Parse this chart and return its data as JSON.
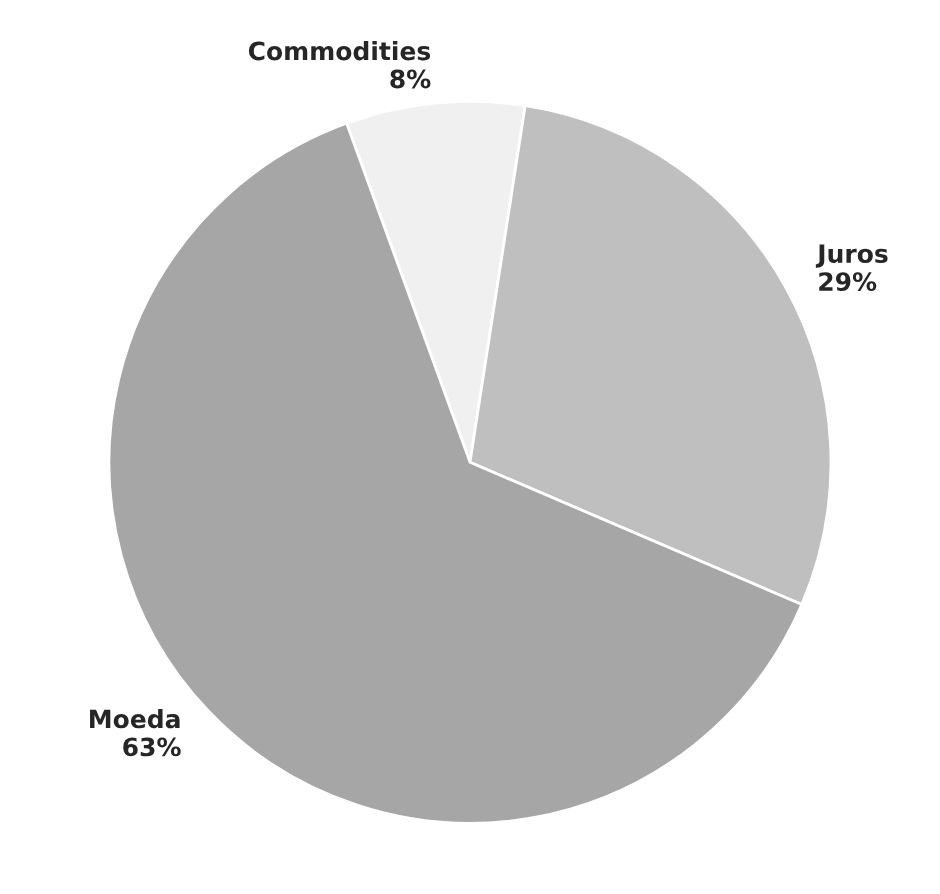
{
  "chart_data": {
    "type": "pie",
    "categories": [
      "Commodities",
      "Juros",
      "Moeda"
    ],
    "values": [
      8,
      29,
      63
    ],
    "colors": [
      "#f0f0f0",
      "#bfbfbf",
      "#a6a6a6"
    ],
    "value_labels": [
      "8%",
      "29%",
      "63%"
    ],
    "legend": false
  }
}
